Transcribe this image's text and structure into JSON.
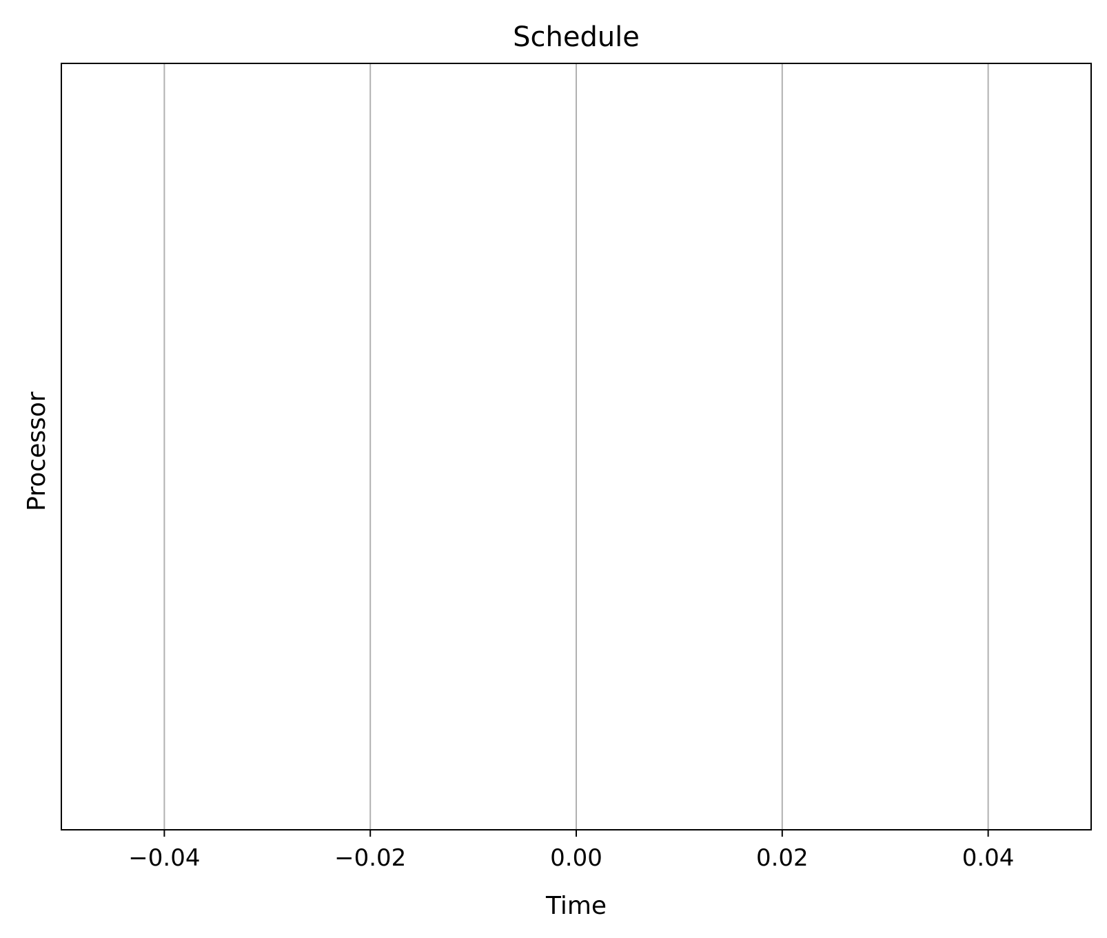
{
  "chart_data": {
    "type": "bar",
    "title": "Schedule",
    "xlabel": "Time",
    "ylabel": "Processor",
    "xlim": [
      -0.05,
      0.05
    ],
    "x_ticks": [
      -0.04,
      -0.02,
      0.0,
      0.02,
      0.04
    ],
    "x_tick_labels": [
      "−0.04",
      "−0.02",
      "0.00",
      "0.02",
      "0.04"
    ],
    "y_ticks": [],
    "series": [],
    "grid": {
      "x": true,
      "y": false
    },
    "grid_color": "#b0b0b0",
    "axes_color": "#000000",
    "background": "#ffffff"
  }
}
